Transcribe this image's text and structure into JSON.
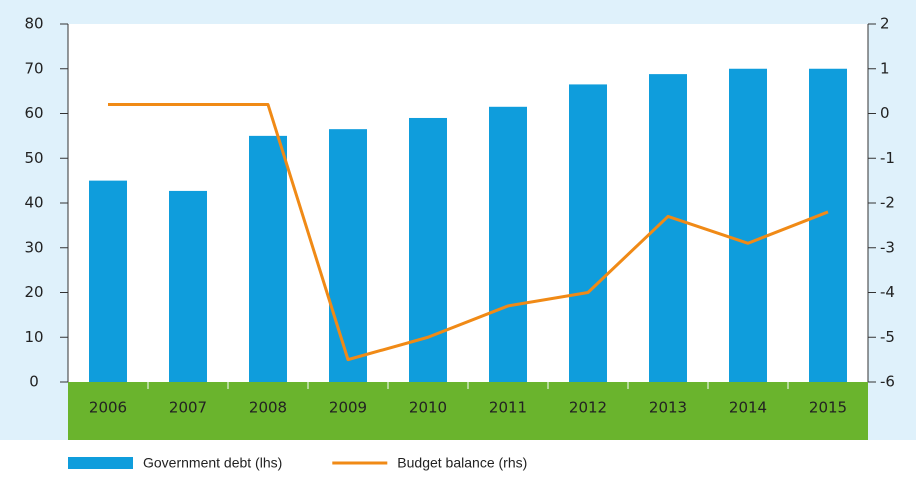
{
  "chart_data": {
    "type": "bar-line",
    "categories": [
      "2006",
      "2007",
      "2008",
      "2009",
      "2010",
      "2011",
      "2012",
      "2013",
      "2014",
      "2015"
    ],
    "series": [
      {
        "name": "Government debt (lhs)",
        "type": "bar",
        "color": "#0f9ddc",
        "values": [
          45,
          42.7,
          55,
          56.5,
          59,
          61.5,
          66.5,
          68.8,
          70,
          70
        ]
      },
      {
        "name": "Budget balance (rhs)",
        "type": "line",
        "axis": "y2",
        "color": "#f08a16",
        "values": [
          0.2,
          0.2,
          0.2,
          -5.5,
          -5.0,
          -4.3,
          -4.0,
          -2.3,
          -2.9,
          -2.2
        ]
      }
    ],
    "ylim": [
      0,
      80
    ],
    "yticks": [
      0,
      10,
      20,
      30,
      40,
      50,
      60,
      70,
      80
    ],
    "y2lim": [
      -6,
      2
    ],
    "y2ticks": [
      -6,
      -5,
      -4,
      -3,
      -2,
      -1,
      0,
      1,
      2
    ],
    "legend": "bottom-left"
  }
}
